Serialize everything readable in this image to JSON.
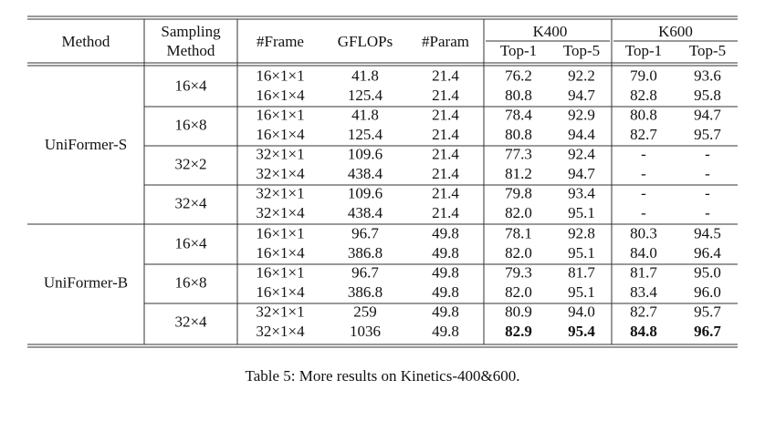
{
  "table": {
    "header": {
      "columns": [
        "Method",
        [
          "Sampling",
          "Method"
        ],
        "#Frame",
        "GFLOPs",
        "#Param"
      ],
      "groups": [
        {
          "name": "K400",
          "columns": [
            "Top-1",
            "Top-5"
          ]
        },
        {
          "name": "K600",
          "columns": [
            "Top-1",
            "Top-5"
          ]
        }
      ]
    },
    "models": [
      {
        "name": "UniFormer-S",
        "samplings": [
          {
            "name": "16×4",
            "rows": [
              {
                "cells": [
                  "16×1×1",
                  "41.8",
                  "21.4",
                  "76.2",
                  "92.2",
                  "79.0",
                  "93.6"
                ]
              },
              {
                "cells": [
                  "16×1×4",
                  "125.4",
                  "21.4",
                  "80.8",
                  "94.7",
                  "82.8",
                  "95.8"
                ]
              }
            ]
          },
          {
            "name": "16×8",
            "rows": [
              {
                "cells": [
                  "16×1×1",
                  "41.8",
                  "21.4",
                  "78.4",
                  "92.9",
                  "80.8",
                  "94.7"
                ]
              },
              {
                "cells": [
                  "16×1×4",
                  "125.4",
                  "21.4",
                  "80.8",
                  "94.4",
                  "82.7",
                  "95.7"
                ]
              }
            ]
          },
          {
            "name": "32×2",
            "rows": [
              {
                "cells": [
                  "32×1×1",
                  "109.6",
                  "21.4",
                  "77.3",
                  "92.4",
                  "-",
                  "-"
                ]
              },
              {
                "cells": [
                  "32×1×4",
                  "438.4",
                  "21.4",
                  "81.2",
                  "94.7",
                  "-",
                  "-"
                ]
              }
            ]
          },
          {
            "name": "32×4",
            "rows": [
              {
                "cells": [
                  "32×1×1",
                  "109.6",
                  "21.4",
                  "79.8",
                  "93.4",
                  "-",
                  "-"
                ]
              },
              {
                "cells": [
                  "32×1×4",
                  "438.4",
                  "21.4",
                  "82.0",
                  "95.1",
                  "-",
                  "-"
                ]
              }
            ]
          }
        ]
      },
      {
        "name": "UniFormer-B",
        "samplings": [
          {
            "name": "16×4",
            "rows": [
              {
                "cells": [
                  "16×1×1",
                  "96.7",
                  "49.8",
                  "78.1",
                  "92.8",
                  "80.3",
                  "94.5"
                ]
              },
              {
                "cells": [
                  "16×1×4",
                  "386.8",
                  "49.8",
                  "82.0",
                  "95.1",
                  "84.0",
                  "96.4"
                ]
              }
            ]
          },
          {
            "name": "16×8",
            "rows": [
              {
                "cells": [
                  "16×1×1",
                  "96.7",
                  "49.8",
                  "79.3",
                  "81.7",
                  "81.7",
                  "95.0"
                ]
              },
              {
                "cells": [
                  "16×1×4",
                  "386.8",
                  "49.8",
                  "82.0",
                  "95.1",
                  "83.4",
                  "96.0"
                ]
              }
            ]
          },
          {
            "name": "32×4",
            "rows": [
              {
                "cells": [
                  "32×1×1",
                  "259",
                  "49.8",
                  "80.9",
                  "94.0",
                  "82.7",
                  "95.7"
                ]
              },
              {
                "cells": [
                  "32×1×4",
                  "1036",
                  "49.8",
                  "82.9",
                  "95.4",
                  "84.8",
                  "96.7"
                ],
                "bold": true
              }
            ]
          }
        ]
      }
    ],
    "caption": "Table 5: More results on Kinetics-400&600."
  }
}
